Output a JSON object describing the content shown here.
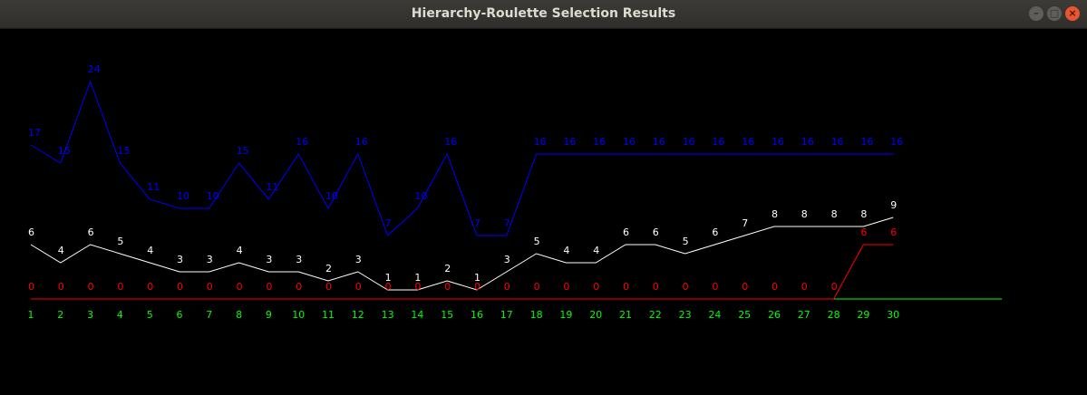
{
  "window": {
    "title": "Hierarchy-Roulette Selection Results",
    "minimize_icon": "minimize-icon",
    "maximize_icon": "maximize-icon",
    "close_icon": "close-icon"
  },
  "colors": {
    "blue": "#0000ff",
    "white": "#ffffff",
    "red": "#ff0000",
    "green": "#00ff00"
  },
  "chart_data": {
    "type": "line",
    "x": [
      1,
      2,
      3,
      4,
      5,
      6,
      7,
      8,
      9,
      10,
      11,
      12,
      13,
      14,
      15,
      16,
      17,
      18,
      19,
      20,
      21,
      22,
      23,
      24,
      25,
      26,
      27,
      28,
      29,
      30
    ],
    "series": [
      {
        "color": "#0000ff",
        "values": [
          17,
          15,
          24,
          15,
          11,
          10,
          10,
          15,
          11,
          16,
          10,
          16,
          7,
          10,
          16,
          7,
          7,
          16,
          16,
          16,
          16,
          16,
          16,
          16,
          16,
          16,
          16,
          16,
          16,
          16
        ]
      },
      {
        "color": "#ffffff",
        "values": [
          6,
          4,
          6,
          5,
          4,
          3,
          3,
          4,
          3,
          3,
          2,
          3,
          1,
          1,
          2,
          1,
          3,
          5,
          4,
          4,
          6,
          6,
          5,
          6,
          7,
          8,
          8,
          8,
          8,
          9
        ]
      },
      {
        "color": "#ff0000",
        "values": [
          0,
          0,
          0,
          0,
          0,
          0,
          0,
          0,
          0,
          0,
          0,
          0,
          0,
          0,
          0,
          0,
          0,
          0,
          0,
          0,
          0,
          0,
          0,
          0,
          0,
          0,
          0,
          0,
          6,
          6
        ]
      }
    ],
    "x_tick_color": "#00ff00"
  }
}
